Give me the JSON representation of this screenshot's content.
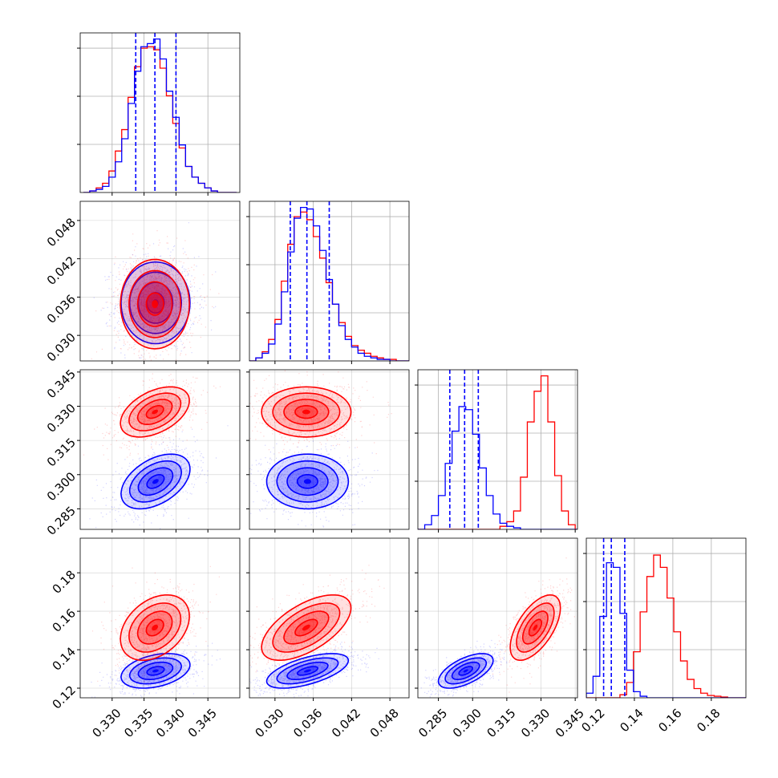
{
  "colors": {
    "series_a": "#0000ff",
    "series_b": "#ff0000",
    "grid": "#b0b0b0",
    "axis": "#000000"
  },
  "chart_data": {
    "type": "corner",
    "params": [
      {
        "ticks": [
          0.33,
          0.335,
          0.34,
          0.345
        ],
        "tick_labels": [
          "0.330",
          "0.335",
          "0.340",
          "0.345"
        ],
        "range": [
          0.325,
          0.35
        ]
      },
      {
        "ticks": [
          0.03,
          0.036,
          0.042,
          0.048
        ],
        "tick_labels": [
          "0.030",
          "0.036",
          "0.042",
          "0.048"
        ],
        "range": [
          0.026,
          0.051
        ]
      },
      {
        "ticks": [
          0.285,
          0.3,
          0.315,
          0.33,
          0.345
        ],
        "tick_labels": [
          "0.285",
          "0.300",
          "0.315",
          "0.330",
          "0.345"
        ],
        "range": [
          0.276,
          0.346
        ]
      },
      {
        "ticks": [
          0.12,
          0.14,
          0.16,
          0.18
        ],
        "tick_labels": [
          "0.12",
          "0.14",
          "0.16",
          "0.18"
        ],
        "range": [
          0.115,
          0.198
        ]
      }
    ],
    "series": [
      {
        "color": "blue",
        "mean": [
          0.3368,
          0.0351,
          0.297,
          0.129
        ],
        "sd": [
          0.0027,
          0.0032,
          0.006,
          0.0045
        ],
        "quantiles": [
          [
            0.3337,
            0.3367,
            0.34
          ],
          [
            0.0324,
            0.035,
            0.0385
          ],
          [
            0.29,
            0.2965,
            0.3025
          ],
          [
            0.124,
            0.128,
            0.135
          ]
        ]
      },
      {
        "color": "red",
        "mean": [
          0.3367,
          0.0349,
          0.3275,
          0.1515
        ],
        "sd": [
          0.0027,
          0.0035,
          0.0055,
          0.0085
        ],
        "quantiles": []
      }
    ],
    "histograms": [
      {
        "bin_edges": [
          0.3255,
          0.3265,
          0.3275,
          0.3285,
          0.3295,
          0.3305,
          0.3315,
          0.3325,
          0.3335,
          0.3345,
          0.3355,
          0.3365,
          0.3375,
          0.3385,
          0.3395,
          0.3405,
          0.3415,
          0.3425,
          0.3435,
          0.3445,
          0.3455,
          0.3465,
          0.3475,
          0.3485,
          0.3495
        ],
        "blue": [
          0.0,
          0.01,
          0.02,
          0.04,
          0.1,
          0.2,
          0.35,
          0.58,
          0.79,
          0.95,
          0.97,
          1.0,
          0.87,
          0.66,
          0.49,
          0.31,
          0.17,
          0.1,
          0.06,
          0.03,
          0.01,
          0.0,
          0.0,
          0.0
        ],
        "red": [
          0.0,
          0.01,
          0.03,
          0.06,
          0.14,
          0.27,
          0.41,
          0.62,
          0.82,
          0.94,
          0.95,
          0.93,
          0.81,
          0.63,
          0.45,
          0.29,
          0.17,
          0.1,
          0.06,
          0.03,
          0.01,
          0.0,
          0.0,
          0.0
        ]
      },
      {
        "bin_edges": [
          0.026,
          0.027,
          0.028,
          0.029,
          0.03,
          0.031,
          0.032,
          0.033,
          0.034,
          0.035,
          0.036,
          0.037,
          0.038,
          0.039,
          0.04,
          0.041,
          0.042,
          0.043,
          0.044,
          0.045,
          0.046,
          0.047,
          0.048,
          0.049,
          0.05,
          0.051
        ],
        "blue": [
          0.0,
          0.02,
          0.05,
          0.11,
          0.24,
          0.45,
          0.71,
          0.93,
          1.0,
          0.99,
          0.88,
          0.72,
          0.53,
          0.37,
          0.23,
          0.14,
          0.09,
          0.05,
          0.03,
          0.02,
          0.01,
          0.01,
          0.0,
          0.0,
          0.0
        ],
        "red": [
          0.0,
          0.02,
          0.06,
          0.14,
          0.27,
          0.52,
          0.76,
          0.94,
          0.97,
          0.92,
          0.81,
          0.67,
          0.51,
          0.37,
          0.25,
          0.16,
          0.1,
          0.07,
          0.05,
          0.03,
          0.02,
          0.01,
          0.01,
          0.0,
          0.0
        ]
      },
      {
        "bin_edges": [
          0.276,
          0.279,
          0.282,
          0.285,
          0.288,
          0.291,
          0.294,
          0.297,
          0.3,
          0.303,
          0.306,
          0.309,
          0.312,
          0.315,
          0.318,
          0.321,
          0.324,
          0.327,
          0.33,
          0.333,
          0.336,
          0.339,
          0.342,
          0.345,
          0.348
        ],
        "blue": [
          0.0,
          0.03,
          0.09,
          0.22,
          0.43,
          0.64,
          0.8,
          0.78,
          0.62,
          0.4,
          0.22,
          0.1,
          0.04,
          0.02,
          0.01,
          0.0,
          0.0,
          0.0,
          0.0,
          0.0,
          0.0,
          0.0,
          0.0,
          0.0
        ],
        "red": [
          0.0,
          0.0,
          0.0,
          0.0,
          0.0,
          0.0,
          0.0,
          0.0,
          0.0,
          0.0,
          0.0,
          0.0,
          0.02,
          0.05,
          0.12,
          0.34,
          0.7,
          0.9,
          1.0,
          0.7,
          0.35,
          0.12,
          0.03,
          0.0
        ]
      },
      {
        "bin_edges": [
          0.115,
          0.1185,
          0.122,
          0.1255,
          0.129,
          0.1325,
          0.136,
          0.1395,
          0.143,
          0.1465,
          0.15,
          0.1535,
          0.157,
          0.1605,
          0.164,
          0.1675,
          0.171,
          0.1745,
          0.178,
          0.1815,
          0.185,
          0.1885,
          0.192,
          0.1955,
          0.199
        ],
        "blue": [
          0.03,
          0.14,
          0.53,
          0.88,
          0.85,
          0.55,
          0.18,
          0.04,
          0.01,
          0.0,
          0.0,
          0.0,
          0.0,
          0.0,
          0.0,
          0.0,
          0.0,
          0.0,
          0.0,
          0.0,
          0.0,
          0.0,
          0.0,
          0.0
        ],
        "red": [
          0.0,
          0.0,
          0.0,
          0.0,
          0.0,
          0.02,
          0.1,
          0.3,
          0.56,
          0.79,
          0.93,
          0.85,
          0.65,
          0.43,
          0.24,
          0.12,
          0.06,
          0.03,
          0.015,
          0.01,
          0.005,
          0.0,
          0.0,
          0.0
        ]
      }
    ],
    "correlations": {
      "0-1": 0.0,
      "0-2": 0.45,
      "0-3": 0.35,
      "1-2": 0.0,
      "1-3": 0.6,
      "2-3": 0.6
    },
    "quantile_lines_series": "blue",
    "grid": true
  }
}
